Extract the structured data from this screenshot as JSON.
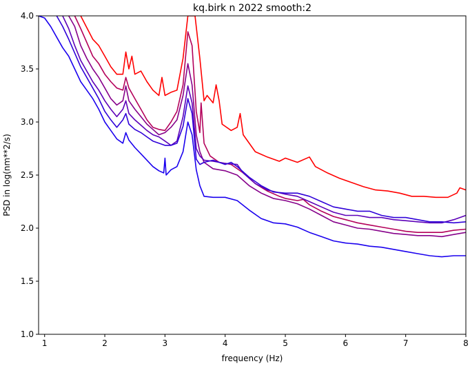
{
  "chart_data": {
    "type": "line",
    "title": "kq.birk n 2022 smooth:2",
    "xlabel": "frequency (Hz)",
    "ylabel": "PSD in log(nm**2/s)",
    "xlim": [
      0.9,
      8.0
    ],
    "ylim": [
      1.0,
      4.0
    ],
    "xticks": [
      "1",
      "2",
      "3",
      "4",
      "5",
      "6",
      "7",
      "8"
    ],
    "yticks": [
      "1.0",
      "1.5",
      "2.0",
      "2.5",
      "3.0",
      "3.5",
      "4.0"
    ],
    "grid": false,
    "legend": "none",
    "series": [
      {
        "color": "#ff0000",
        "points": [
          [
            1.6,
            4.0
          ],
          [
            1.8,
            3.78
          ],
          [
            1.9,
            3.72
          ],
          [
            2.0,
            3.62
          ],
          [
            2.1,
            3.52
          ],
          [
            2.2,
            3.45
          ],
          [
            2.3,
            3.45
          ],
          [
            2.35,
            3.66
          ],
          [
            2.4,
            3.5
          ],
          [
            2.45,
            3.62
          ],
          [
            2.5,
            3.45
          ],
          [
            2.6,
            3.48
          ],
          [
            2.7,
            3.38
          ],
          [
            2.8,
            3.3
          ],
          [
            2.9,
            3.25
          ],
          [
            2.95,
            3.42
          ],
          [
            3.0,
            3.25
          ],
          [
            3.1,
            3.28
          ],
          [
            3.2,
            3.3
          ],
          [
            3.3,
            3.6
          ],
          [
            3.38,
            4.0
          ],
          [
            3.5,
            4.0
          ],
          [
            3.58,
            3.6
          ],
          [
            3.65,
            3.2
          ],
          [
            3.7,
            3.25
          ],
          [
            3.8,
            3.18
          ],
          [
            3.85,
            3.35
          ],
          [
            3.9,
            3.2
          ],
          [
            3.95,
            2.98
          ],
          [
            4.1,
            2.92
          ],
          [
            4.2,
            2.95
          ],
          [
            4.25,
            3.08
          ],
          [
            4.3,
            2.88
          ],
          [
            4.5,
            2.72
          ],
          [
            4.7,
            2.67
          ],
          [
            4.9,
            2.63
          ],
          [
            5.0,
            2.66
          ],
          [
            5.2,
            2.62
          ],
          [
            5.4,
            2.67
          ],
          [
            5.5,
            2.58
          ],
          [
            5.7,
            2.52
          ],
          [
            5.9,
            2.47
          ],
          [
            6.1,
            2.43
          ],
          [
            6.3,
            2.39
          ],
          [
            6.5,
            2.36
          ],
          [
            6.7,
            2.35
          ],
          [
            6.9,
            2.33
          ],
          [
            7.1,
            2.3
          ],
          [
            7.3,
            2.3
          ],
          [
            7.5,
            2.29
          ],
          [
            7.7,
            2.29
          ],
          [
            7.85,
            2.33
          ],
          [
            7.9,
            2.38
          ],
          [
            8.0,
            2.36
          ]
        ]
      },
      {
        "color": "#b3005a",
        "points": [
          [
            1.5,
            4.0
          ],
          [
            1.6,
            3.88
          ],
          [
            1.7,
            3.75
          ],
          [
            1.8,
            3.62
          ],
          [
            1.9,
            3.55
          ],
          [
            2.0,
            3.45
          ],
          [
            2.1,
            3.38
          ],
          [
            2.2,
            3.32
          ],
          [
            2.3,
            3.3
          ],
          [
            2.35,
            3.42
          ],
          [
            2.4,
            3.32
          ],
          [
            2.5,
            3.22
          ],
          [
            2.6,
            3.12
          ],
          [
            2.7,
            3.02
          ],
          [
            2.8,
            2.95
          ],
          [
            2.9,
            2.93
          ],
          [
            3.0,
            2.92
          ],
          [
            3.1,
            3.0
          ],
          [
            3.2,
            3.1
          ],
          [
            3.3,
            3.35
          ],
          [
            3.38,
            3.85
          ],
          [
            3.45,
            3.72
          ],
          [
            3.52,
            3.1
          ],
          [
            3.58,
            2.9
          ],
          [
            3.6,
            3.18
          ],
          [
            3.65,
            2.8
          ],
          [
            3.75,
            2.68
          ],
          [
            3.9,
            2.62
          ],
          [
            4.1,
            2.6
          ],
          [
            4.3,
            2.52
          ],
          [
            4.5,
            2.42
          ],
          [
            4.7,
            2.35
          ],
          [
            4.9,
            2.3
          ],
          [
            5.0,
            2.28
          ],
          [
            5.2,
            2.26
          ],
          [
            5.3,
            2.27
          ],
          [
            5.4,
            2.22
          ],
          [
            5.6,
            2.16
          ],
          [
            5.8,
            2.11
          ],
          [
            6.0,
            2.08
          ],
          [
            6.2,
            2.05
          ],
          [
            6.4,
            2.03
          ],
          [
            6.6,
            2.01
          ],
          [
            6.8,
            1.99
          ],
          [
            7.0,
            1.97
          ],
          [
            7.2,
            1.96
          ],
          [
            7.4,
            1.96
          ],
          [
            7.6,
            1.96
          ],
          [
            7.8,
            1.98
          ],
          [
            8.0,
            1.99
          ]
        ]
      },
      {
        "color": "#86008a",
        "points": [
          [
            1.4,
            4.0
          ],
          [
            1.5,
            3.9
          ],
          [
            1.6,
            3.72
          ],
          [
            1.7,
            3.6
          ],
          [
            1.8,
            3.5
          ],
          [
            1.9,
            3.42
          ],
          [
            2.0,
            3.32
          ],
          [
            2.1,
            3.22
          ],
          [
            2.2,
            3.16
          ],
          [
            2.3,
            3.2
          ],
          [
            2.35,
            3.34
          ],
          [
            2.4,
            3.2
          ],
          [
            2.5,
            3.12
          ],
          [
            2.6,
            3.05
          ],
          [
            2.7,
            2.98
          ],
          [
            2.8,
            2.93
          ],
          [
            2.9,
            2.88
          ],
          [
            3.0,
            2.9
          ],
          [
            3.1,
            2.95
          ],
          [
            3.2,
            3.02
          ],
          [
            3.3,
            3.25
          ],
          [
            3.38,
            3.55
          ],
          [
            3.45,
            3.35
          ],
          [
            3.52,
            2.88
          ],
          [
            3.58,
            2.72
          ],
          [
            3.65,
            2.62
          ],
          [
            3.8,
            2.56
          ],
          [
            4.0,
            2.54
          ],
          [
            4.2,
            2.5
          ],
          [
            4.4,
            2.4
          ],
          [
            4.6,
            2.33
          ],
          [
            4.8,
            2.28
          ],
          [
            5.0,
            2.26
          ],
          [
            5.2,
            2.23
          ],
          [
            5.4,
            2.18
          ],
          [
            5.6,
            2.12
          ],
          [
            5.8,
            2.06
          ],
          [
            6.0,
            2.03
          ],
          [
            6.2,
            2.0
          ],
          [
            6.4,
            1.99
          ],
          [
            6.6,
            1.97
          ],
          [
            6.8,
            1.95
          ],
          [
            7.0,
            1.94
          ],
          [
            7.2,
            1.93
          ],
          [
            7.4,
            1.93
          ],
          [
            7.6,
            1.92
          ],
          [
            7.8,
            1.94
          ],
          [
            8.0,
            1.96
          ]
        ]
      },
      {
        "color": "#5c00b8",
        "points": [
          [
            1.3,
            4.0
          ],
          [
            1.4,
            3.88
          ],
          [
            1.5,
            3.72
          ],
          [
            1.6,
            3.58
          ],
          [
            1.7,
            3.48
          ],
          [
            1.8,
            3.38
          ],
          [
            1.9,
            3.3
          ],
          [
            2.0,
            3.2
          ],
          [
            2.1,
            3.12
          ],
          [
            2.2,
            3.05
          ],
          [
            2.3,
            3.12
          ],
          [
            2.35,
            3.2
          ],
          [
            2.4,
            3.08
          ],
          [
            2.5,
            3.02
          ],
          [
            2.6,
            2.97
          ],
          [
            2.7,
            2.92
          ],
          [
            2.8,
            2.88
          ],
          [
            2.9,
            2.86
          ],
          [
            3.0,
            2.82
          ],
          [
            3.1,
            2.78
          ],
          [
            3.2,
            2.82
          ],
          [
            3.3,
            3.05
          ],
          [
            3.38,
            3.34
          ],
          [
            3.45,
            3.18
          ],
          [
            3.52,
            2.75
          ],
          [
            3.58,
            2.68
          ],
          [
            3.65,
            2.64
          ],
          [
            3.8,
            2.63
          ],
          [
            3.9,
            2.62
          ],
          [
            4.0,
            2.61
          ],
          [
            4.2,
            2.6
          ],
          [
            4.3,
            2.52
          ],
          [
            4.5,
            2.42
          ],
          [
            4.7,
            2.36
          ],
          [
            5.0,
            2.32
          ],
          [
            5.2,
            2.3
          ],
          [
            5.4,
            2.25
          ],
          [
            5.6,
            2.2
          ],
          [
            5.8,
            2.15
          ],
          [
            6.0,
            2.12
          ],
          [
            6.2,
            2.12
          ],
          [
            6.4,
            2.1
          ],
          [
            6.6,
            2.1
          ],
          [
            6.8,
            2.08
          ],
          [
            7.0,
            2.07
          ],
          [
            7.2,
            2.06
          ],
          [
            7.4,
            2.05
          ],
          [
            7.6,
            2.05
          ],
          [
            7.8,
            2.08
          ],
          [
            8.0,
            2.12
          ]
        ]
      },
      {
        "color": "#2f00d8",
        "points": [
          [
            1.2,
            4.0
          ],
          [
            1.3,
            3.9
          ],
          [
            1.4,
            3.78
          ],
          [
            1.5,
            3.65
          ],
          [
            1.6,
            3.52
          ],
          [
            1.7,
            3.42
          ],
          [
            1.8,
            3.32
          ],
          [
            1.9,
            3.22
          ],
          [
            2.0,
            3.1
          ],
          [
            2.1,
            3.02
          ],
          [
            2.2,
            2.95
          ],
          [
            2.3,
            3.02
          ],
          [
            2.35,
            3.08
          ],
          [
            2.4,
            2.98
          ],
          [
            2.5,
            2.93
          ],
          [
            2.6,
            2.9
          ],
          [
            2.7,
            2.86
          ],
          [
            2.8,
            2.82
          ],
          [
            2.9,
            2.8
          ],
          [
            3.0,
            2.78
          ],
          [
            3.1,
            2.78
          ],
          [
            3.2,
            2.8
          ],
          [
            3.3,
            2.96
          ],
          [
            3.38,
            3.22
          ],
          [
            3.45,
            3.08
          ],
          [
            3.52,
            2.65
          ],
          [
            3.58,
            2.6
          ],
          [
            3.65,
            2.62
          ],
          [
            3.8,
            2.64
          ],
          [
            3.9,
            2.62
          ],
          [
            4.0,
            2.6
          ],
          [
            4.1,
            2.62
          ],
          [
            4.2,
            2.58
          ],
          [
            4.4,
            2.48
          ],
          [
            4.6,
            2.4
          ],
          [
            4.8,
            2.34
          ],
          [
            5.0,
            2.33
          ],
          [
            5.2,
            2.33
          ],
          [
            5.4,
            2.3
          ],
          [
            5.6,
            2.25
          ],
          [
            5.8,
            2.2
          ],
          [
            6.0,
            2.18
          ],
          [
            6.2,
            2.16
          ],
          [
            6.4,
            2.16
          ],
          [
            6.6,
            2.12
          ],
          [
            6.8,
            2.1
          ],
          [
            7.0,
            2.1
          ],
          [
            7.2,
            2.08
          ],
          [
            7.4,
            2.06
          ],
          [
            7.6,
            2.06
          ],
          [
            7.8,
            2.05
          ],
          [
            8.0,
            2.06
          ]
        ]
      },
      {
        "color": "#1a00ee",
        "points": [
          [
            0.9,
            4.0
          ],
          [
            1.0,
            3.98
          ],
          [
            1.1,
            3.9
          ],
          [
            1.2,
            3.8
          ],
          [
            1.3,
            3.7
          ],
          [
            1.4,
            3.62
          ],
          [
            1.5,
            3.5
          ],
          [
            1.6,
            3.38
          ],
          [
            1.7,
            3.3
          ],
          [
            1.8,
            3.22
          ],
          [
            1.9,
            3.12
          ],
          [
            2.0,
            3.0
          ],
          [
            2.1,
            2.92
          ],
          [
            2.2,
            2.84
          ],
          [
            2.3,
            2.8
          ],
          [
            2.35,
            2.9
          ],
          [
            2.4,
            2.83
          ],
          [
            2.5,
            2.76
          ],
          [
            2.6,
            2.7
          ],
          [
            2.7,
            2.64
          ],
          [
            2.8,
            2.58
          ],
          [
            2.9,
            2.54
          ],
          [
            2.98,
            2.52
          ],
          [
            3.0,
            2.66
          ],
          [
            3.02,
            2.5
          ],
          [
            3.1,
            2.55
          ],
          [
            3.2,
            2.58
          ],
          [
            3.3,
            2.72
          ],
          [
            3.38,
            3.0
          ],
          [
            3.45,
            2.88
          ],
          [
            3.52,
            2.55
          ],
          [
            3.58,
            2.4
          ],
          [
            3.65,
            2.3
          ],
          [
            3.8,
            2.29
          ],
          [
            4.0,
            2.29
          ],
          [
            4.2,
            2.26
          ],
          [
            4.4,
            2.17
          ],
          [
            4.6,
            2.09
          ],
          [
            4.8,
            2.05
          ],
          [
            5.0,
            2.04
          ],
          [
            5.2,
            2.01
          ],
          [
            5.4,
            1.96
          ],
          [
            5.6,
            1.92
          ],
          [
            5.8,
            1.88
          ],
          [
            6.0,
            1.86
          ],
          [
            6.2,
            1.85
          ],
          [
            6.4,
            1.83
          ],
          [
            6.6,
            1.82
          ],
          [
            6.8,
            1.8
          ],
          [
            7.0,
            1.78
          ],
          [
            7.2,
            1.76
          ],
          [
            7.4,
            1.74
          ],
          [
            7.6,
            1.73
          ],
          [
            7.8,
            1.74
          ],
          [
            8.0,
            1.74
          ]
        ]
      }
    ]
  }
}
